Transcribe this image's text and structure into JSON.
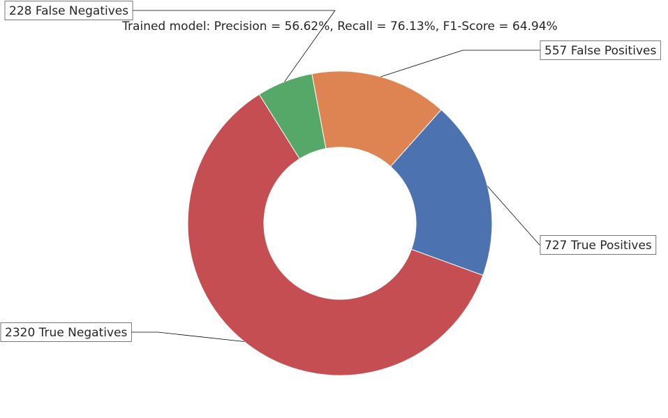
{
  "chart_data": {
    "type": "pie",
    "variant": "donut",
    "title": "Trained model: Precision = 56.62%, Recall = 76.13%, F1-Score = 64.94%",
    "slices": [
      {
        "label": "727 True Positives",
        "value": 727,
        "color": "#4c72b0"
      },
      {
        "label": "557 False Positives",
        "value": 557,
        "color": "#dd8452"
      },
      {
        "label": "228 False Negatives",
        "value": 228,
        "color": "#55a868"
      },
      {
        "label": "2320 True Negatives",
        "value": 2320,
        "color": "#c44e52"
      }
    ],
    "start_angle_deg": -20,
    "direction": "counterclockwise",
    "labels_outside": true
  }
}
